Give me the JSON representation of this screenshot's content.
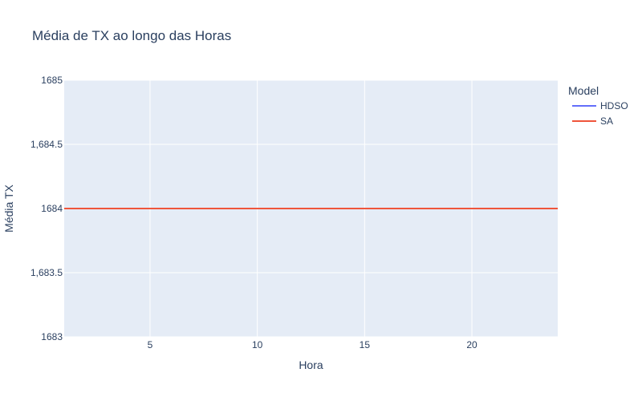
{
  "chart_data": {
    "type": "line",
    "title": "Média de TX ao longo das Horas",
    "xlabel": "Hora",
    "ylabel": "Média TX",
    "x": [
      1,
      2,
      3,
      4,
      5,
      6,
      7,
      8,
      9,
      10,
      11,
      12,
      13,
      14,
      15,
      16,
      17,
      18,
      19,
      20,
      21,
      22,
      23,
      24
    ],
    "xlim": [
      1,
      24
    ],
    "ylim": [
      1683,
      1685
    ],
    "x_ticks": [
      5,
      10,
      15,
      20
    ],
    "x_tick_labels": [
      "5",
      "10",
      "15",
      "20"
    ],
    "y_ticks": [
      1683,
      1683.5,
      1684,
      1684.5,
      1685
    ],
    "y_tick_labels": [
      "1683",
      "1,683.5",
      "1684",
      "1,684.5",
      "1685"
    ],
    "grid": true,
    "legend": {
      "title": "Model",
      "placement": "top-right"
    },
    "series": [
      {
        "name": "HDSO",
        "color": "#636efa",
        "values": [
          1684,
          1684,
          1684,
          1684,
          1684,
          1684,
          1684,
          1684,
          1684,
          1684,
          1684,
          1684,
          1684,
          1684,
          1684,
          1684,
          1684,
          1684,
          1684,
          1684,
          1684,
          1684,
          1684,
          1684
        ]
      },
      {
        "name": "SA",
        "color": "#ef553b",
        "values": [
          1684,
          1684,
          1684,
          1684,
          1684,
          1684,
          1684,
          1684,
          1684,
          1684,
          1684,
          1684,
          1684,
          1684,
          1684,
          1684,
          1684,
          1684,
          1684,
          1684,
          1684,
          1684,
          1684,
          1684
        ]
      }
    ],
    "plot_background": "#e5ecf6"
  }
}
